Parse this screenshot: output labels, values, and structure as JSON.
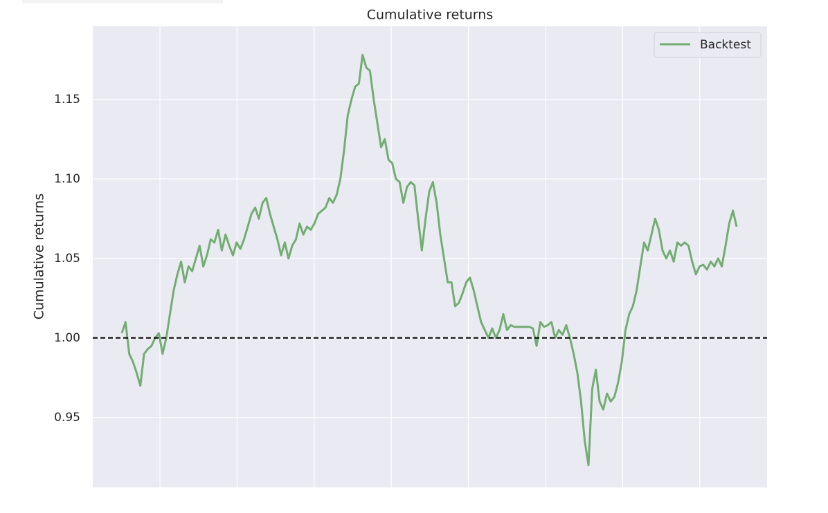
{
  "chart_data": {
    "type": "line",
    "title": "Cumulative returns",
    "y_label": "Cumulative returns",
    "series": [
      {
        "name": "Backtest",
        "color": "#72ad72",
        "values": [
          1.003,
          1.01,
          0.99,
          0.985,
          0.978,
          0.97,
          0.99,
          0.993,
          0.995,
          1.0,
          1.003,
          0.99,
          1.0,
          1.015,
          1.03,
          1.04,
          1.048,
          1.035,
          1.045,
          1.042,
          1.05,
          1.058,
          1.045,
          1.052,
          1.062,
          1.06,
          1.068,
          1.055,
          1.065,
          1.058,
          1.052,
          1.06,
          1.056,
          1.062,
          1.07,
          1.078,
          1.082,
          1.075,
          1.085,
          1.088,
          1.078,
          1.07,
          1.062,
          1.052,
          1.06,
          1.05,
          1.058,
          1.062,
          1.072,
          1.065,
          1.07,
          1.068,
          1.072,
          1.078,
          1.08,
          1.082,
          1.088,
          1.085,
          1.09,
          1.1,
          1.118,
          1.14,
          1.15,
          1.158,
          1.16,
          1.178,
          1.17,
          1.168,
          1.15,
          1.135,
          1.12,
          1.125,
          1.112,
          1.11,
          1.1,
          1.098,
          1.085,
          1.095,
          1.098,
          1.096,
          1.075,
          1.055,
          1.075,
          1.092,
          1.098,
          1.085,
          1.065,
          1.05,
          1.035,
          1.035,
          1.02,
          1.022,
          1.028,
          1.035,
          1.038,
          1.03,
          1.02,
          1.01,
          1.005,
          1.0,
          1.006,
          1.0,
          1.005,
          1.015,
          1.005,
          1.008,
          1.007,
          1.007,
          1.007,
          1.007,
          1.007,
          1.006,
          0.995,
          1.01,
          1.007,
          1.008,
          1.01,
          1.0,
          1.005,
          1.002,
          1.008,
          1.0,
          0.99,
          0.978,
          0.96,
          0.935,
          0.92,
          0.968,
          0.98,
          0.96,
          0.955,
          0.965,
          0.96,
          0.963,
          0.972,
          0.985,
          1.005,
          1.015,
          1.02,
          1.03,
          1.045,
          1.06,
          1.055,
          1.065,
          1.075,
          1.068,
          1.055,
          1.05,
          1.055,
          1.048,
          1.06,
          1.058,
          1.06,
          1.058,
          1.048,
          1.04,
          1.045,
          1.046,
          1.043,
          1.048,
          1.045,
          1.05,
          1.045,
          1.058,
          1.072,
          1.08,
          1.07
        ]
      }
    ],
    "hline": 1,
    "ylim": [
      0.906,
      1.196
    ],
    "yticks": [
      0.95,
      {
        "value": 1,
        "label": "1.00"
      },
      1.05,
      {
        "value": 1.1,
        "label": "1.10"
      },
      1.15
    ],
    "grid": true,
    "x_grid_lines": 8,
    "legend": "upper right"
  }
}
